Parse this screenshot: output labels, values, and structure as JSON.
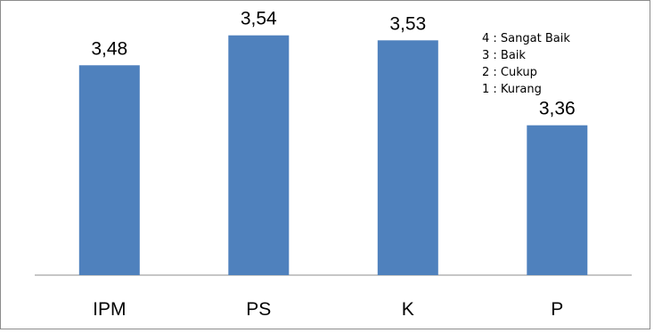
{
  "chart_data": {
    "type": "bar",
    "categories": [
      "IPM",
      "PS",
      "K",
      "P"
    ],
    "values": [
      3.48,
      3.54,
      3.53,
      3.36
    ],
    "value_labels": [
      "3,48",
      "3,54",
      "3,53",
      "3,36"
    ],
    "title": "",
    "xlabel": "",
    "ylabel": "",
    "ylim": [
      3.06,
      3.6
    ],
    "grid": false,
    "bar_color": "#4f81bd",
    "annotation": [
      "4 : Sangat Baik",
      "3 : Baik",
      "2 : Cukup",
      "1 : Kurang"
    ]
  }
}
